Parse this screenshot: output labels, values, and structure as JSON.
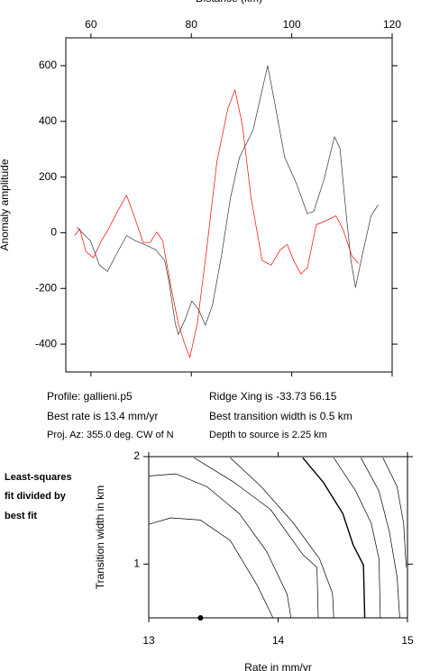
{
  "chart_data": [
    {
      "type": "line",
      "title": "Distance (km)",
      "y_label": "Anomaly amplitude",
      "xlim": [
        55,
        120
      ],
      "ylim": [
        -500,
        700
      ],
      "xticks": [
        60,
        80,
        100,
        120
      ],
      "yticks": [
        -400,
        -200,
        0,
        200,
        400,
        600
      ],
      "series": [
        {
          "color": "#333333",
          "x": [
            57.2,
            58.1,
            59.9,
            61.7,
            63.3,
            64.9,
            67.1,
            68.9,
            70.7,
            72.9,
            74.7,
            75.6,
            76.8,
            77.4,
            78.8,
            80.1,
            81.5,
            82.8,
            84.2,
            86.0,
            87.8,
            89.6,
            92.3,
            94.1,
            95.2,
            96.8,
            98.6,
            101.0,
            103.1,
            104.4,
            106.4,
            108.5,
            109.6,
            110.7,
            111.8,
            112.7,
            114.0,
            115.8,
            117.2
          ],
          "values": [
            20,
            3,
            -29,
            -116,
            -139,
            -84,
            -10,
            -29,
            -42,
            -61,
            -100,
            -180,
            -326,
            -365,
            -310,
            -245,
            -277,
            -332,
            -261,
            -84,
            126,
            271,
            368,
            513,
            600,
            448,
            271,
            174,
            68,
            77,
            190,
            345,
            303,
            94,
            -100,
            -197,
            -84,
            61,
            100
          ]
        },
        {
          "color": "#ff0000",
          "x": [
            56.7,
            57.8,
            59.0,
            60.5,
            62.1,
            63.5,
            65.3,
            67.1,
            68.6,
            70.4,
            71.8,
            73.1,
            74.3,
            75.8,
            77.4,
            78.8,
            79.7,
            81.2,
            83.0,
            85.1,
            87.3,
            88.7,
            90.2,
            91.9,
            94.1,
            95.9,
            97.7,
            99.1,
            100.4,
            101.8,
            103.1,
            104.9,
            107.0,
            108.8,
            110.2,
            112.0,
            113.3
          ],
          "values": [
            -10,
            13,
            -68,
            -90,
            -29,
            13,
            77,
            135,
            61,
            -35,
            -35,
            3,
            -29,
            -180,
            -326,
            -406,
            -448,
            -326,
            -68,
            255,
            448,
            513,
            384,
            126,
            -100,
            -116,
            -61,
            -42,
            -100,
            -148,
            -126,
            29,
            45,
            61,
            13,
            -84,
            -110
          ]
        }
      ]
    },
    {
      "type": "contour",
      "x_label": "Rate in mm/yr",
      "y_label": "Transition width in km",
      "xlim": [
        13,
        15
      ],
      "ylim": [
        0.5,
        2
      ],
      "xticks": [
        13,
        14,
        15
      ],
      "yticks": [
        1,
        2
      ],
      "series": [
        {
          "color": "#000000",
          "x": [
            13,
            13.17,
            13.4,
            13.63,
            13.84,
            13.96
          ],
          "values": [
            1.37,
            1.43,
            1.41,
            1.22,
            0.8,
            0.5
          ]
        },
        {
          "color": "#000000",
          "x": [
            13,
            13.21,
            13.45,
            13.7,
            13.91,
            14.07,
            14.1
          ],
          "values": [
            1.82,
            1.84,
            1.72,
            1.47,
            1.12,
            0.72,
            0.5
          ]
        },
        {
          "color": "#000000",
          "x": [
            13.35,
            13.66,
            13.94,
            14.19,
            14.3,
            14.31
          ],
          "values": [
            1.99,
            1.76,
            1.51,
            1.09,
            0.97,
            0.5
          ]
        },
        {
          "color": "#000000",
          "x": [
            13.63,
            13.87,
            14.12,
            14.32,
            14.42,
            14.43
          ],
          "values": [
            1.99,
            1.72,
            1.38,
            1.05,
            0.73,
            0.5
          ]
        },
        {
          "color": "#000000",
          "line_width": 1.4,
          "x": [
            14.19,
            14.35,
            14.5,
            14.58,
            14.66,
            14.67
          ],
          "values": [
            1.99,
            1.76,
            1.47,
            1.18,
            0.99,
            0.5
          ]
        },
        {
          "color": "#000000",
          "x": [
            14.43,
            14.6,
            14.72,
            14.78,
            14.79
          ],
          "values": [
            1.99,
            1.68,
            1.38,
            1.05,
            0.5
          ]
        },
        {
          "color": "#000000",
          "x": [
            14.64,
            14.78,
            14.86,
            14.92,
            14.94
          ],
          "values": [
            1.99,
            1.68,
            1.3,
            0.88,
            0.5
          ]
        },
        {
          "color": "#000000",
          "x": [
            14.81,
            14.92,
            14.97,
            14.99
          ],
          "values": [
            1.99,
            1.72,
            1.38,
            0.97
          ]
        }
      ],
      "points": [
        {
          "x": 13.4,
          "y": 0.5
        }
      ]
    }
  ],
  "panel": {
    "lines": [
      "Profile: gallieni.p5",
      "Ridge Xing is -33.73 56.15",
      "Best rate is 13.4 mm/yr",
      "Best transition width is 0.5 km",
      "Proj. Az: 355.0 deg. CW of N",
      "Depth to source is   2.25 km"
    ],
    "side_label": [
      "Least-squares",
      "fit divided by",
      "best fit"
    ]
  }
}
